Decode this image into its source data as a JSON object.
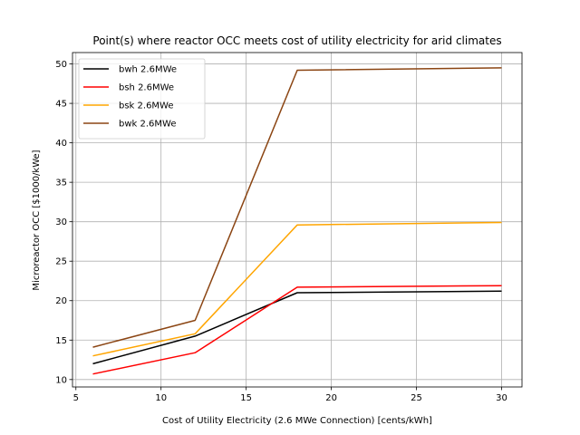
{
  "chart_data": {
    "type": "line",
    "title": "Point(s) where reactor OCC meets cost of utility electricity for arid climates",
    "xlabel": "Cost of Utility Electricity (2.6 MWe Connection) [cents/kWh]",
    "ylabel": "Microreactor OCC [$1000/kWe]",
    "xlim": [
      4.8,
      31.2
    ],
    "ylim": [
      9.06,
      51.44
    ],
    "xticks": [
      5,
      10,
      15,
      20,
      25,
      30
    ],
    "yticks": [
      10,
      15,
      20,
      25,
      30,
      35,
      40,
      45,
      50
    ],
    "grid": true,
    "legend_position": "upper-left",
    "x": [
      6,
      12,
      18,
      30
    ],
    "series": [
      {
        "name": "bwh 2.6MWe",
        "color": "#000000",
        "values": [
          12.0,
          15.5,
          21.0,
          21.2
        ]
      },
      {
        "name": "bsh 2.6MWe",
        "color": "#ff0000",
        "values": [
          10.7,
          13.4,
          21.7,
          21.9
        ]
      },
      {
        "name": "bsk 2.6MWe",
        "color": "#ffa500",
        "values": [
          13.0,
          15.8,
          29.6,
          29.9
        ]
      },
      {
        "name": "bwk 2.6MWe",
        "color": "#8b4513",
        "values": [
          14.1,
          17.5,
          49.2,
          49.5
        ]
      }
    ]
  }
}
